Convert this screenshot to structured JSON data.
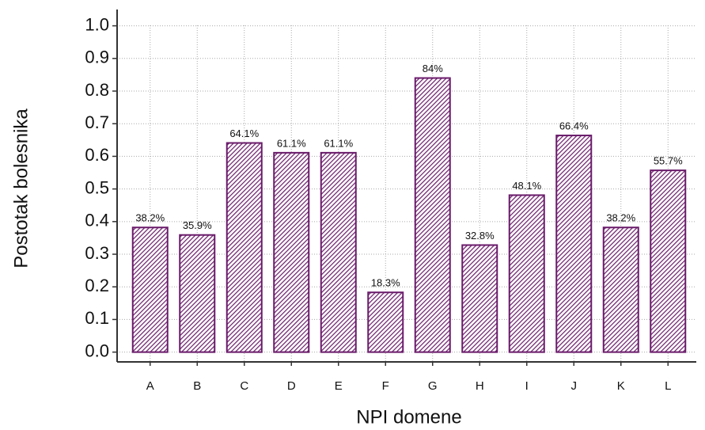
{
  "chart_data": {
    "type": "bar",
    "xlabel": "NPI domene",
    "ylabel": "Postotak bolesnika",
    "categories": [
      "A",
      "B",
      "C",
      "D",
      "E",
      "F",
      "G",
      "H",
      "I",
      "J",
      "K",
      "L"
    ],
    "values": [
      0.382,
      0.359,
      0.641,
      0.611,
      0.611,
      0.183,
      0.84,
      0.328,
      0.481,
      0.664,
      0.382,
      0.557
    ],
    "value_labels": [
      "38.2%",
      "35.9%",
      "64.1%",
      "61.1%",
      "61.1%",
      "18.3%",
      "84%",
      "32.8%",
      "48.1%",
      "66.4%",
      "38.2%",
      "55.7%"
    ],
    "color": "#6a1b6a",
    "ylim": [
      -0.03,
      1.05
    ],
    "yticks": [
      {
        "value": 0,
        "label": "0.0"
      },
      0.1,
      0.2,
      0.3,
      0.4,
      0.5,
      0.6,
      0.7,
      0.8,
      0.9,
      {
        "value": 1,
        "label": "1.0"
      }
    ],
    "grid": true
  }
}
